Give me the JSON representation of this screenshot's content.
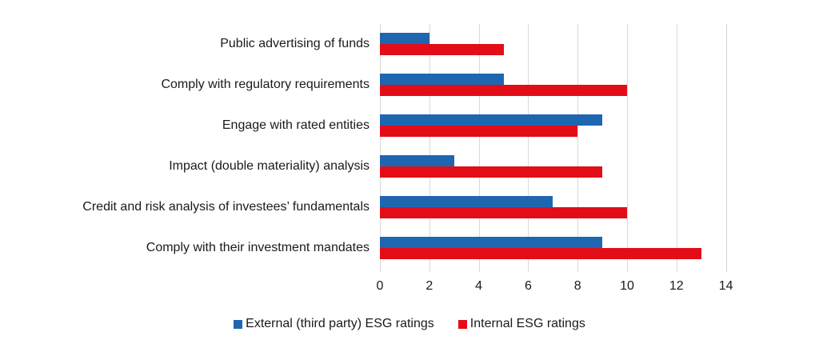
{
  "chart_data": {
    "type": "bar",
    "orientation": "horizontal",
    "title": "",
    "xlabel": "",
    "ylabel": "",
    "xlim": [
      0,
      14
    ],
    "xticks": [
      0,
      2,
      4,
      6,
      8,
      10,
      12,
      14
    ],
    "grid": true,
    "legend_position": "bottom",
    "categories": [
      "Public advertising of funds",
      "Comply with regulatory requirements",
      "Engage with rated entities",
      "Impact (double materiality) analysis",
      "Credit and risk analysis of investees’ fundamentals",
      "Comply with their investment mandates"
    ],
    "series": [
      {
        "name": "External (third party) ESG ratings",
        "color": "#1f66b1",
        "values": [
          2,
          5,
          9,
          3,
          7,
          9
        ]
      },
      {
        "name": "Internal ESG ratings",
        "color": "#e30d17",
        "values": [
          5,
          10,
          8,
          9,
          10,
          13
        ]
      }
    ]
  }
}
